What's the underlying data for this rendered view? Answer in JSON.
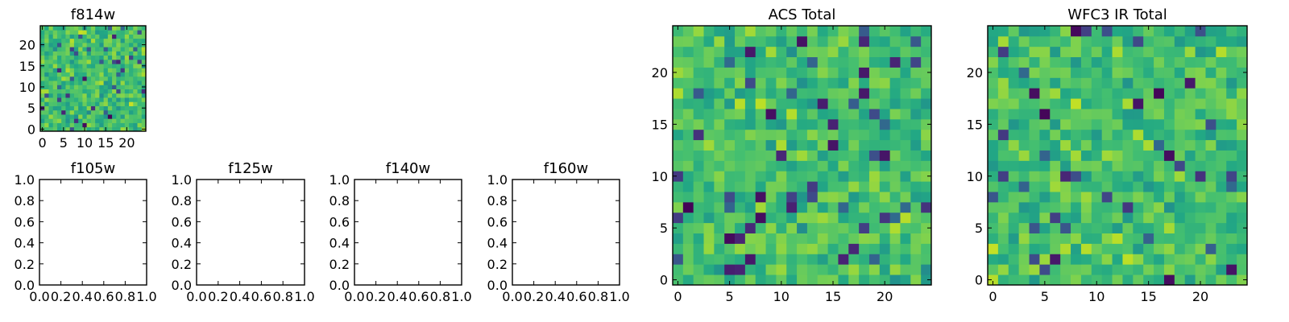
{
  "chart_data": [
    {
      "type": "heatmap",
      "title": "f814w",
      "size": 25,
      "colormap": "viridis",
      "seed": 11,
      "xlim": [
        -0.5,
        24.5
      ],
      "ylim": [
        -0.5,
        24.5
      ],
      "xticks": [
        0,
        5,
        10,
        15,
        20
      ],
      "yticks": [
        0,
        5,
        10,
        15,
        20
      ]
    },
    {
      "type": "heatmap",
      "title": "ACS Total",
      "size": 25,
      "colormap": "viridis",
      "seed": 37,
      "xlim": [
        -0.5,
        24.5
      ],
      "ylim": [
        -0.5,
        24.5
      ],
      "xticks": [
        0,
        5,
        10,
        15,
        20
      ],
      "yticks": [
        0,
        5,
        10,
        15,
        20
      ]
    },
    {
      "type": "heatmap",
      "title": "WFC3 IR Total",
      "size": 25,
      "colormap": "viridis",
      "seed": 73,
      "xlim": [
        -0.5,
        24.5
      ],
      "ylim": [
        -0.5,
        24.5
      ],
      "xticks": [
        0,
        5,
        10,
        15,
        20
      ],
      "yticks": [
        0,
        5,
        10,
        15,
        20
      ]
    },
    {
      "type": "heatmap",
      "title": "f105w",
      "empty": true,
      "xlim": [
        0,
        1
      ],
      "ylim": [
        0,
        1
      ],
      "xticks": [
        0.0,
        0.2,
        0.4,
        0.6,
        0.8,
        1.0
      ],
      "yticks": [
        0.0,
        0.2,
        0.4,
        0.6,
        0.8,
        1.0
      ],
      "xtick_labels": [
        "0.0",
        "0.2",
        "0.4",
        "0.6",
        "0.8",
        "1.0"
      ],
      "ytick_labels": [
        "0.0",
        "0.2",
        "0.4",
        "0.6",
        "0.8",
        "1.0"
      ]
    },
    {
      "type": "heatmap",
      "title": "f125w",
      "empty": true,
      "xlim": [
        0,
        1
      ],
      "ylim": [
        0,
        1
      ],
      "xticks": [
        0.0,
        0.2,
        0.4,
        0.6,
        0.8,
        1.0
      ],
      "yticks": [
        0.0,
        0.2,
        0.4,
        0.6,
        0.8,
        1.0
      ],
      "xtick_labels": [
        "0.0",
        "0.2",
        "0.4",
        "0.6",
        "0.8",
        "1.0"
      ],
      "ytick_labels": [
        "0.0",
        "0.2",
        "0.4",
        "0.6",
        "0.8",
        "1.0"
      ]
    },
    {
      "type": "heatmap",
      "title": "f140w",
      "empty": true,
      "xlim": [
        0,
        1
      ],
      "ylim": [
        0,
        1
      ],
      "xticks": [
        0.0,
        0.2,
        0.4,
        0.6,
        0.8,
        1.0
      ],
      "yticks": [
        0.0,
        0.2,
        0.4,
        0.6,
        0.8,
        1.0
      ],
      "xtick_labels": [
        "0.0",
        "0.2",
        "0.4",
        "0.6",
        "0.8",
        "1.0"
      ],
      "ytick_labels": [
        "0.0",
        "0.2",
        "0.4",
        "0.6",
        "0.8",
        "1.0"
      ]
    },
    {
      "type": "heatmap",
      "title": "f160w",
      "empty": true,
      "xlim": [
        0,
        1
      ],
      "ylim": [
        0,
        1
      ],
      "xticks": [
        0.0,
        0.2,
        0.4,
        0.6,
        0.8,
        1.0
      ],
      "yticks": [
        0.0,
        0.2,
        0.4,
        0.6,
        0.8,
        1.0
      ],
      "xtick_labels": [
        "0.0",
        "0.2",
        "0.4",
        "0.6",
        "0.8",
        "1.0"
      ],
      "ytick_labels": [
        "0.0",
        "0.2",
        "0.4",
        "0.6",
        "0.8",
        "1.0"
      ]
    }
  ]
}
